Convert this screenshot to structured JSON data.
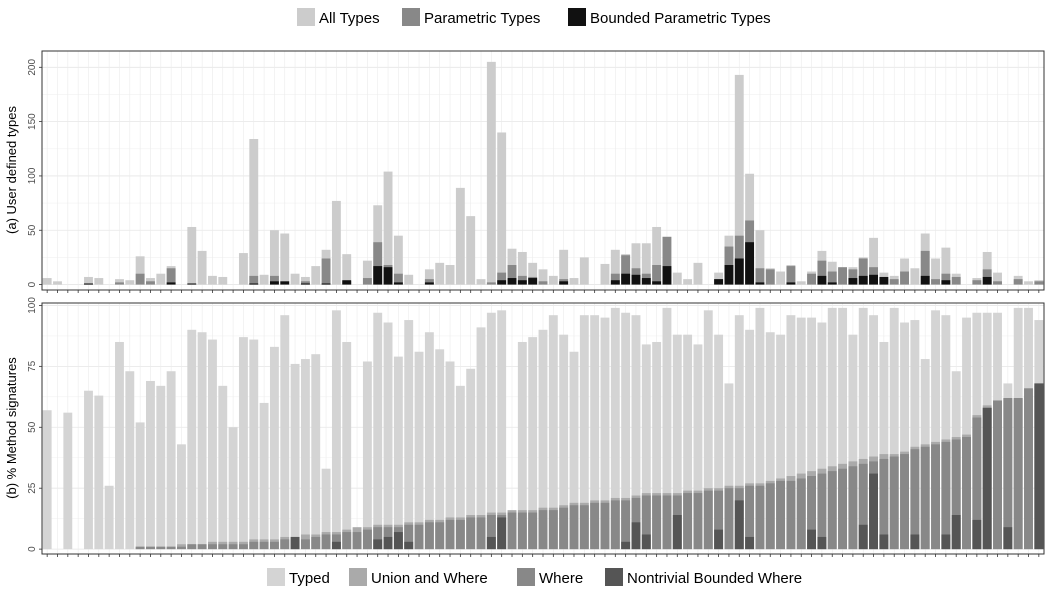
{
  "chart_data": [
    {
      "type": "bar",
      "subtype": "overlapping bars",
      "ylabel": "(a) User defined types",
      "ylim": [
        -5,
        215
      ],
      "yticks": [
        0,
        50,
        100,
        150,
        200
      ],
      "grid": true,
      "legend_position": "top",
      "categories_count": 97,
      "series": [
        {
          "name": "All Types",
          "color": "#cccccc",
          "values": [
            6,
            3,
            0,
            0,
            7,
            6,
            0,
            5,
            4,
            26,
            6,
            10,
            17,
            0,
            53,
            31,
            8,
            7,
            0,
            29,
            134,
            9,
            50,
            47,
            10,
            7,
            17,
            32,
            77,
            28,
            0,
            22,
            73,
            104,
            45,
            9,
            0,
            14,
            20,
            18,
            89,
            63,
            5,
            205,
            140,
            33,
            30,
            20,
            14,
            8,
            32,
            6,
            25,
            0,
            19,
            32,
            28,
            38,
            38,
            53,
            15,
            11,
            5,
            20,
            0,
            11,
            45,
            193,
            102,
            50,
            15,
            12,
            18,
            3,
            12,
            31,
            21,
            15,
            16,
            25,
            43,
            11,
            8,
            24,
            15,
            47,
            24,
            34,
            10,
            0,
            6,
            30,
            11,
            0,
            8,
            3,
            4
          ]
        },
        {
          "name": "Parametric Types",
          "color": "#888888",
          "values": [
            0,
            0,
            0,
            0,
            1,
            0,
            0,
            2,
            0,
            10,
            3,
            0,
            15,
            0,
            0,
            0,
            0,
            0,
            0,
            0,
            8,
            0,
            8,
            0,
            0,
            3,
            0,
            24,
            0,
            3,
            0,
            6,
            39,
            18,
            10,
            0,
            0,
            5,
            0,
            0,
            0,
            0,
            0,
            2,
            11,
            18,
            8,
            7,
            3,
            0,
            5,
            0,
            0,
            0,
            0,
            10,
            27,
            15,
            10,
            18,
            44,
            0,
            0,
            0,
            0,
            5,
            35,
            45,
            59,
            15,
            14,
            0,
            17,
            0,
            10,
            22,
            12,
            16,
            14,
            24,
            16,
            5,
            5,
            12,
            0,
            31,
            5,
            10,
            7,
            0,
            4,
            14,
            3,
            0,
            5,
            0,
            3
          ]
        },
        {
          "name": "Bounded Parametric Types",
          "color": "#111111",
          "values": [
            0,
            0,
            0,
            0,
            1,
            0,
            0,
            0,
            0,
            0,
            0,
            0,
            2,
            0,
            1,
            0,
            0,
            0,
            0,
            0,
            1,
            0,
            3,
            3,
            0,
            1,
            0,
            1,
            0,
            4,
            0,
            0,
            17,
            16,
            2,
            0,
            0,
            2,
            0,
            0,
            0,
            0,
            0,
            0,
            4,
            6,
            4,
            6,
            0,
            0,
            3,
            0,
            0,
            0,
            0,
            4,
            10,
            9,
            6,
            3,
            17,
            0,
            0,
            0,
            0,
            5,
            18,
            24,
            39,
            2,
            0,
            0,
            2,
            0,
            0,
            8,
            2,
            0,
            6,
            8,
            9,
            7,
            0,
            0,
            0,
            8,
            0,
            4,
            0,
            0,
            0,
            7,
            0,
            0,
            0,
            0,
            0
          ]
        }
      ]
    },
    {
      "type": "bar",
      "subtype": "overlapping bars",
      "ylabel": "(b) % Method signatures",
      "ylim": [
        -2,
        101
      ],
      "yticks": [
        0,
        25,
        50,
        75,
        100
      ],
      "grid": true,
      "legend_position": "bottom",
      "categories_count": 97,
      "series": [
        {
          "name": "Typed",
          "color": "#d4d4d4",
          "values": [
            57,
            0,
            56,
            0,
            65,
            63,
            26,
            85,
            73,
            52,
            69,
            67,
            73,
            43,
            90,
            89,
            86,
            67,
            50,
            87,
            86,
            60,
            83,
            96,
            76,
            78,
            80,
            33,
            98,
            85,
            0,
            77,
            97,
            93,
            79,
            94,
            81,
            89,
            82,
            77,
            67,
            74,
            91,
            97,
            98,
            0,
            85,
            87,
            90,
            96,
            88,
            81,
            96,
            96,
            95,
            99,
            97,
            96,
            84,
            85,
            99,
            88,
            88,
            84,
            98,
            88,
            68,
            96,
            90,
            99,
            89,
            88,
            96,
            95,
            95,
            93,
            99,
            99,
            88,
            99,
            96,
            85,
            99,
            93,
            94,
            78,
            98,
            96,
            73,
            95,
            97,
            97,
            97,
            68,
            99,
            99,
            94
          ]
        },
        {
          "name": "Union and Where",
          "color": "#aaaaaa",
          "values": [
            0,
            0,
            0,
            0,
            0,
            0,
            0,
            0,
            0,
            1,
            1,
            1,
            1,
            2,
            2,
            2,
            3,
            3,
            3,
            3,
            4,
            4,
            4,
            5,
            5,
            6,
            6,
            7,
            7,
            8,
            9,
            9,
            10,
            10,
            10,
            11,
            11,
            12,
            12,
            13,
            13,
            14,
            14,
            15,
            15,
            16,
            16,
            16,
            17,
            17,
            18,
            19,
            19,
            20,
            20,
            21,
            21,
            22,
            23,
            23,
            23,
            23,
            24,
            24,
            25,
            25,
            26,
            26,
            27,
            27,
            28,
            29,
            30,
            31,
            32,
            33,
            34,
            35,
            36,
            37,
            38,
            39,
            39,
            40,
            42,
            43,
            44,
            45,
            46,
            47,
            55,
            59,
            61,
            62,
            62,
            63,
            67
          ]
        },
        {
          "name": "Where",
          "color": "#888888",
          "values": [
            0,
            0,
            0,
            0,
            0,
            0,
            0,
            0,
            0,
            1,
            1,
            1,
            1,
            1,
            2,
            2,
            2,
            2,
            2,
            2,
            3,
            3,
            3,
            4,
            4,
            4,
            5,
            6,
            6,
            7,
            7,
            8,
            9,
            9,
            9,
            10,
            10,
            11,
            11,
            12,
            12,
            13,
            13,
            14,
            14,
            15,
            15,
            15,
            16,
            16,
            17,
            18,
            18,
            19,
            19,
            20,
            20,
            21,
            22,
            22,
            22,
            22,
            23,
            23,
            24,
            24,
            25,
            25,
            26,
            26,
            27,
            28,
            28,
            29,
            30,
            31,
            32,
            33,
            34,
            35,
            36,
            37,
            38,
            39,
            41,
            42,
            43,
            44,
            45,
            46,
            54,
            58,
            61,
            62,
            62,
            66,
            68
          ]
        },
        {
          "name": "Nontrivial Bounded Where",
          "color": "#555555",
          "values": [
            0,
            0,
            0,
            0,
            0,
            0,
            0,
            0,
            0,
            0,
            0,
            0,
            0,
            0,
            0,
            0,
            0,
            0,
            0,
            0,
            0,
            0,
            0,
            0,
            5,
            0,
            0,
            0,
            3,
            0,
            0,
            0,
            4,
            5,
            7,
            3,
            0,
            0,
            0,
            0,
            0,
            0,
            0,
            5,
            13,
            0,
            0,
            0,
            0,
            0,
            0,
            0,
            0,
            0,
            0,
            0,
            3,
            11,
            6,
            0,
            0,
            14,
            0,
            0,
            0,
            8,
            0,
            20,
            5,
            0,
            0,
            0,
            0,
            0,
            8,
            5,
            0,
            0,
            0,
            10,
            31,
            6,
            0,
            0,
            6,
            0,
            0,
            6,
            14,
            0,
            12,
            58,
            0,
            9,
            0,
            0,
            68
          ]
        }
      ]
    }
  ]
}
